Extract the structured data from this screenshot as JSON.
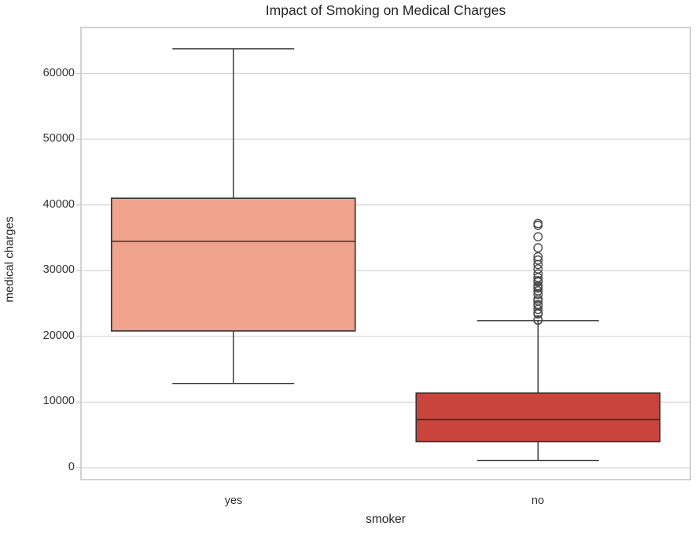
{
  "chart_data": {
    "type": "boxplot",
    "title": "Impact of Smoking on Medical Charges",
    "xlabel": "smoker",
    "ylabel": "medical charges",
    "categories": [
      "yes",
      "no"
    ],
    "ylim": [
      -1800,
      67000
    ],
    "yticks": [
      0,
      10000,
      20000,
      30000,
      40000,
      50000,
      60000
    ],
    "grid": "horizontal",
    "legend": "none",
    "series": [
      {
        "name": "yes",
        "whisker_low": 12829,
        "q1": 20826,
        "median": 34456,
        "q3": 41019,
        "whisker_high": 63770,
        "outliers": [],
        "fill_color": "#efa28c"
      },
      {
        "name": "no",
        "whisker_low": 1121,
        "q1": 3986,
        "median": 7345,
        "q3": 11363,
        "whisker_high": 22395,
        "outliers": [
          37165,
          36910,
          35160,
          33472,
          32109,
          31620,
          30942,
          30260,
          29523,
          28950,
          28468,
          28288,
          27724,
          27534,
          27346,
          26927,
          26392,
          25679,
          25382,
          24870,
          24672,
          24107,
          23563,
          23401,
          22494,
          22462
        ],
        "fill_color": "#c9443d"
      }
    ],
    "colors": {
      "box_edge": "#333333",
      "whisker": "#2f2f2f",
      "grid": "#d4d4d4",
      "spine": "#cccccc",
      "text": "#262626",
      "outlier_edge": "#4a4a4a",
      "background": "#ffffff"
    }
  }
}
